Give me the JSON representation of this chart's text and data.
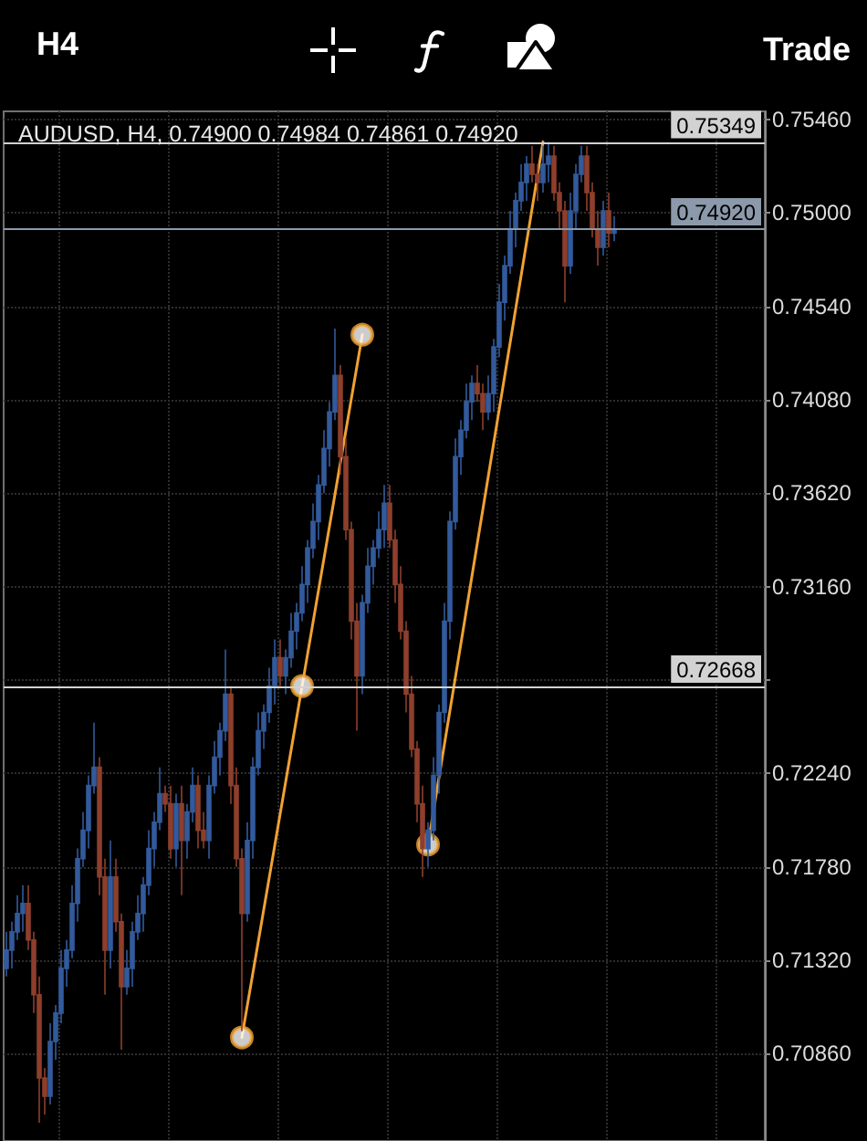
{
  "chart_data": {
    "type": "candlestick",
    "title": "AUDUSD, H4, 0.74900 0.74984 0.74861 0.74920",
    "annotations": [
      "H4",
      "Trade"
    ],
    "categories": [
      null,
      null,
      null,
      null,
      null,
      null,
      null,
      null,
      null,
      null,
      null,
      null,
      null,
      null,
      null,
      null,
      null,
      null,
      null,
      null,
      null,
      null,
      null,
      null,
      null,
      null,
      null,
      null,
      null,
      null,
      null,
      null,
      null,
      null,
      null,
      null,
      null,
      null,
      null,
      null,
      null,
      null,
      null,
      null,
      null,
      null,
      null,
      null,
      null,
      null,
      null,
      null,
      null,
      null,
      null,
      null,
      null,
      null,
      null,
      null,
      null,
      null,
      null,
      null,
      null,
      null,
      null,
      null,
      null,
      null,
      null,
      null,
      null,
      null,
      null,
      null,
      null,
      null,
      null,
      null,
      null,
      null,
      null,
      null,
      null,
      null,
      null,
      null,
      null,
      null,
      null,
      null,
      null,
      null,
      null,
      null,
      null,
      null,
      null,
      null,
      null,
      null,
      null,
      null,
      null,
      null,
      null,
      null,
      null,
      null,
      null,
      null,
      null,
      null,
      null,
      null,
      null,
      null,
      null,
      null,
      null,
      null,
      null,
      null,
      null,
      null,
      null,
      null,
      null,
      null,
      null,
      null,
      null,
      null,
      null,
      null,
      null,
      null,
      null
    ],
    "ylim": [
      0.7043,
      0.755
    ],
    "yticks": [
      {
        "value": 0.7086,
        "label": "0.70860"
      },
      {
        "value": 0.7132,
        "label": "0.71320"
      },
      {
        "value": 0.7178,
        "label": "0.71780"
      },
      {
        "value": 0.7224,
        "label": "0.72240"
      },
      {
        "value": 0.727,
        "label": null
      },
      {
        "value": 0.7316,
        "label": "0.73160"
      },
      {
        "value": 0.7362,
        "label": "0.73620"
      },
      {
        "value": 0.7408,
        "label": "0.74080"
      },
      {
        "value": 0.7454,
        "label": "0.74540"
      },
      {
        "value": 0.75,
        "label": "0.75000"
      },
      {
        "value": 0.7546,
        "label": "0.75460"
      }
    ],
    "grid": true,
    "tick_labels": "y",
    "ref_lines": [
      {
        "axis": "y",
        "value": 0.75349,
        "label": "0.75349",
        "color": "#d2d2d2"
      },
      {
        "axis": "y",
        "value": 0.7492,
        "label": "0.74920",
        "color": "#8c99aa"
      },
      {
        "axis": "y",
        "value": 0.72668,
        "label": "0.72668",
        "color": "#d2d2d2"
      }
    ],
    "series": [
      {
        "ohlc": [
          [
            0.7128,
            0.7146,
            0.7124,
            0.7137
          ],
          [
            0.7137,
            0.7151,
            0.7128,
            0.7146
          ],
          [
            0.7146,
            0.7164,
            0.7142,
            0.7155
          ],
          [
            0.7155,
            0.7169,
            0.7146,
            0.716
          ],
          [
            0.716,
            0.7169,
            0.7137,
            0.7142
          ],
          [
            0.7142,
            0.7146,
            0.7106,
            0.7115
          ],
          [
            0.7115,
            0.7124,
            0.7052,
            0.7074
          ],
          [
            0.7074,
            0.7079,
            0.7056,
            0.7065
          ],
          [
            0.7065,
            0.7101,
            0.7061,
            0.7092
          ],
          [
            0.7092,
            0.711,
            0.7083,
            0.7106
          ],
          [
            0.7106,
            0.7137,
            0.7101,
            0.7128
          ],
          [
            0.7128,
            0.7142,
            0.7119,
            0.7137
          ],
          [
            0.7137,
            0.7169,
            0.7133,
            0.716
          ],
          [
            0.716,
            0.7187,
            0.7151,
            0.7182
          ],
          [
            0.7182,
            0.7205,
            0.7178,
            0.7196
          ],
          [
            0.7196,
            0.7223,
            0.7187,
            0.7218
          ],
          [
            0.7218,
            0.7249,
            0.7214,
            0.7227
          ],
          [
            0.7227,
            0.7232,
            0.7164,
            0.7173
          ],
          [
            0.7173,
            0.7182,
            0.7115,
            0.7137
          ],
          [
            0.7137,
            0.7191,
            0.7128,
            0.7173
          ],
          [
            0.7173,
            0.7182,
            0.7146,
            0.7151
          ],
          [
            0.7151,
            0.7155,
            0.7088,
            0.7119
          ],
          [
            0.7119,
            0.7137,
            0.7115,
            0.7128
          ],
          [
            0.7128,
            0.7151,
            0.7119,
            0.7146
          ],
          [
            0.7146,
            0.7164,
            0.7142,
            0.7155
          ],
          [
            0.7155,
            0.7173,
            0.7146,
            0.7169
          ],
          [
            0.7169,
            0.7196,
            0.7164,
            0.7187
          ],
          [
            0.7187,
            0.7205,
            0.7178,
            0.72
          ],
          [
            0.72,
            0.7227,
            0.7196,
            0.7214
          ],
          [
            0.7214,
            0.7218,
            0.7205,
            0.7209
          ],
          [
            0.7209,
            0.7218,
            0.7182,
            0.7187
          ],
          [
            0.7187,
            0.7214,
            0.7178,
            0.7209
          ],
          [
            0.7209,
            0.7218,
            0.7164,
            0.7191
          ],
          [
            0.7191,
            0.7209,
            0.7182,
            0.7205
          ],
          [
            0.7205,
            0.7227,
            0.72,
            0.7218
          ],
          [
            0.7218,
            0.7223,
            0.7187,
            0.7196
          ],
          [
            0.7196,
            0.7205,
            0.7187,
            0.7191
          ],
          [
            0.7191,
            0.7223,
            0.7182,
            0.7218
          ],
          [
            0.7218,
            0.724,
            0.7214,
            0.7232
          ],
          [
            0.7232,
            0.7249,
            0.7223,
            0.7245
          ],
          [
            0.7245,
            0.7285,
            0.724,
            0.7263
          ],
          [
            0.7263,
            0.7267,
            0.7209,
            0.7218
          ],
          [
            0.7218,
            0.7227,
            0.7178,
            0.7182
          ],
          [
            0.7182,
            0.7187,
            0.7097,
            0.7155
          ],
          [
            0.7155,
            0.72,
            0.7151,
            0.7191
          ],
          [
            0.7191,
            0.7232,
            0.7182,
            0.7227
          ],
          [
            0.7227,
            0.7254,
            0.7223,
            0.7245
          ],
          [
            0.7245,
            0.7258,
            0.7236,
            0.7254
          ],
          [
            0.7254,
            0.7276,
            0.7249,
            0.7267
          ],
          [
            0.7267,
            0.729,
            0.7258,
            0.7281
          ],
          [
            0.7281,
            0.729,
            0.7267,
            0.7272
          ],
          [
            0.7272,
            0.7285,
            0.7263,
            0.7281
          ],
          [
            0.7281,
            0.7303,
            0.7276,
            0.7294
          ],
          [
            0.7294,
            0.7308,
            0.7285,
            0.7303
          ],
          [
            0.7303,
            0.7326,
            0.7299,
            0.7317
          ],
          [
            0.7317,
            0.7339,
            0.7308,
            0.7335
          ],
          [
            0.7335,
            0.7357,
            0.733,
            0.7348
          ],
          [
            0.7348,
            0.7371,
            0.7339,
            0.7366
          ],
          [
            0.7366,
            0.7393,
            0.7362,
            0.7384
          ],
          [
            0.7384,
            0.7407,
            0.7375,
            0.7402
          ],
          [
            0.7402,
            0.7443,
            0.7398,
            0.742
          ],
          [
            0.742,
            0.7425,
            0.7371,
            0.738
          ],
          [
            0.738,
            0.7389,
            0.7339,
            0.7344
          ],
          [
            0.7344,
            0.7348,
            0.729,
            0.7299
          ],
          [
            0.7299,
            0.7308,
            0.7245,
            0.7272
          ],
          [
            0.7272,
            0.7312,
            0.7263,
            0.7308
          ],
          [
            0.7308,
            0.7335,
            0.7303,
            0.7326
          ],
          [
            0.7326,
            0.7339,
            0.7317,
            0.7335
          ],
          [
            0.7335,
            0.7353,
            0.733,
            0.7344
          ],
          [
            0.7344,
            0.7366,
            0.7335,
            0.7357
          ],
          [
            0.7357,
            0.7366,
            0.7335,
            0.7339
          ],
          [
            0.7339,
            0.7344,
            0.7308,
            0.7317
          ],
          [
            0.7317,
            0.7326,
            0.729,
            0.7294
          ],
          [
            0.7294,
            0.7299,
            0.7254,
            0.7263
          ],
          [
            0.7263,
            0.7272,
            0.7232,
            0.7236
          ],
          [
            0.7236,
            0.724,
            0.72,
            0.7209
          ],
          [
            0.7209,
            0.7218,
            0.7173,
            0.7187
          ],
          [
            0.7187,
            0.72,
            0.7178,
            0.7196
          ],
          [
            0.7196,
            0.7232,
            0.7191,
            0.7223
          ],
          [
            0.7223,
            0.7258,
            0.7214,
            0.7254
          ],
          [
            0.7254,
            0.7308,
            0.7249,
            0.7299
          ],
          [
            0.7299,
            0.7353,
            0.729,
            0.7348
          ],
          [
            0.7348,
            0.7389,
            0.7344,
            0.738
          ],
          [
            0.738,
            0.7398,
            0.7371,
            0.7393
          ],
          [
            0.7393,
            0.7416,
            0.7389,
            0.7407
          ],
          [
            0.7407,
            0.742,
            0.7398,
            0.7416
          ],
          [
            0.7416,
            0.7425,
            0.7407,
            0.7411
          ],
          [
            0.7411,
            0.7416,
            0.7393,
            0.7402
          ],
          [
            0.7402,
            0.742,
            0.7398,
            0.7411
          ],
          [
            0.7411,
            0.7438,
            0.7402,
            0.7434
          ],
          [
            0.7434,
            0.7465,
            0.7429,
            0.7456
          ],
          [
            0.7456,
            0.7479,
            0.7447,
            0.7474
          ],
          [
            0.7474,
            0.7501,
            0.747,
            0.7492
          ],
          [
            0.7492,
            0.751,
            0.7483,
            0.7506
          ],
          [
            0.7506,
            0.7524,
            0.7501,
            0.7515
          ],
          [
            0.7515,
            0.7528,
            0.7506,
            0.7524
          ],
          [
            0.7524,
            0.7533,
            0.7515,
            0.7519
          ],
          [
            0.7519,
            0.7524,
            0.7506,
            0.7515
          ],
          [
            0.7515,
            0.7533,
            0.751,
            0.7524
          ],
          [
            0.7524,
            0.75349,
            0.7515,
            0.7528
          ],
          [
            0.7528,
            0.7533,
            0.7506,
            0.751
          ],
          [
            0.751,
            0.7515,
            0.7492,
            0.7501
          ],
          [
            0.7501,
            0.7506,
            0.7456,
            0.7474
          ],
          [
            0.7474,
            0.751,
            0.747,
            0.7501
          ],
          [
            0.7501,
            0.7524,
            0.7492,
            0.7519
          ],
          [
            0.7519,
            0.7533,
            0.7515,
            0.7528
          ],
          [
            0.7528,
            0.7533,
            0.7501,
            0.751
          ],
          [
            0.751,
            0.7515,
            0.7488,
            0.7492
          ],
          [
            0.7492,
            0.7501,
            0.7474,
            0.7483
          ],
          [
            0.7483,
            0.7506,
            0.7479,
            0.7501
          ],
          [
            0.7501,
            0.751,
            0.7483,
            0.749
          ],
          [
            0.749,
            0.74984,
            0.74861,
            0.7492
          ],
          null,
          null,
          null,
          null,
          null,
          null,
          null,
          null,
          null,
          null,
          null,
          null,
          null,
          null,
          null,
          null,
          null,
          null,
          null,
          null,
          null,
          null,
          null,
          null,
          null,
          null,
          null
        ],
        "colors": [
          "#325a9c",
          "#325a9c",
          "#325a9c",
          "#325a9c",
          "#8e3f2c",
          "#8e3f2c",
          "#8e3f2c",
          "#8e3f2c",
          "#325a9c",
          "#325a9c",
          "#325a9c",
          "#325a9c",
          "#325a9c",
          "#325a9c",
          "#325a9c",
          "#325a9c",
          "#325a9c",
          "#8e3f2c",
          "#8e3f2c",
          "#325a9c",
          "#8e3f2c",
          "#8e3f2c",
          "#325a9c",
          "#325a9c",
          "#325a9c",
          "#325a9c",
          "#325a9c",
          "#325a9c",
          "#325a9c",
          "#8e3f2c",
          "#8e3f2c",
          "#325a9c",
          "#8e3f2c",
          "#325a9c",
          "#325a9c",
          "#8e3f2c",
          "#8e3f2c",
          "#325a9c",
          "#325a9c",
          "#325a9c",
          "#325a9c",
          "#8e3f2c",
          "#8e3f2c",
          "#8e3f2c",
          "#325a9c",
          "#325a9c",
          "#325a9c",
          "#325a9c",
          "#325a9c",
          "#325a9c",
          "#8e3f2c",
          "#325a9c",
          "#325a9c",
          "#325a9c",
          "#325a9c",
          "#325a9c",
          "#325a9c",
          "#325a9c",
          "#325a9c",
          "#325a9c",
          "#325a9c",
          "#8e3f2c",
          "#8e3f2c",
          "#8e3f2c",
          "#8e3f2c",
          "#325a9c",
          "#325a9c",
          "#325a9c",
          "#325a9c",
          "#325a9c",
          "#8e3f2c",
          "#8e3f2c",
          "#8e3f2c",
          "#8e3f2c",
          "#8e3f2c",
          "#8e3f2c",
          "#8e3f2c",
          "#325a9c",
          "#325a9c",
          "#325a9c",
          "#325a9c",
          "#325a9c",
          "#325a9c",
          "#325a9c",
          "#325a9c",
          "#325a9c",
          "#8e3f2c",
          "#8e3f2c",
          "#325a9c",
          "#325a9c",
          "#325a9c",
          "#325a9c",
          "#325a9c",
          "#325a9c",
          "#325a9c",
          "#325a9c",
          "#8e3f2c",
          "#8e3f2c",
          "#325a9c",
          "#325a9c",
          "#8e3f2c",
          "#8e3f2c",
          "#8e3f2c",
          "#325a9c",
          "#325a9c",
          "#325a9c",
          "#8e3f2c",
          "#8e3f2c",
          "#8e3f2c",
          "#325a9c",
          "#8e3f2c",
          "#325a9c",
          null,
          null,
          null,
          null,
          null,
          null,
          null,
          null,
          null,
          null,
          null,
          null,
          null,
          null,
          null,
          null,
          null,
          null,
          null,
          null,
          null,
          null,
          null,
          null,
          null,
          null,
          null
        ]
      },
      {
        "type": "line",
        "color": "#f0a232",
        "values": [
          null,
          null,
          null,
          null,
          null,
          null,
          null,
          null,
          null,
          null,
          null,
          null,
          null,
          null,
          null,
          null,
          null,
          null,
          null,
          null,
          null,
          null,
          null,
          null,
          null,
          null,
          null,
          null,
          null,
          null,
          null,
          null,
          null,
          null,
          null,
          null,
          null,
          null,
          null,
          null,
          null,
          null,
          null,
          0.7094,
          null,
          null,
          null,
          null,
          null,
          null,
          null,
          null,
          null,
          null,
          0.7267,
          null,
          null,
          null,
          null,
          null,
          null,
          null,
          null,
          null,
          null,
          0.744,
          null,
          null,
          null,
          null,
          null,
          null,
          null,
          null,
          null,
          null,
          null,
          null,
          null,
          null,
          null,
          null,
          null,
          null,
          null,
          null,
          null,
          null,
          null,
          null,
          null,
          null,
          null,
          null,
          null,
          null,
          null,
          null,
          null,
          null,
          null,
          null,
          null,
          null,
          null,
          null,
          null,
          null,
          null,
          null,
          null,
          null,
          null,
          null,
          null,
          null,
          null,
          null,
          null,
          null,
          null,
          null,
          null,
          null,
          null,
          null,
          null,
          null,
          null,
          null,
          null,
          null,
          null,
          null,
          null,
          null,
          null,
          null,
          null
        ]
      },
      {
        "type": "line",
        "color": "#f0a232",
        "values": [
          null,
          null,
          null,
          null,
          null,
          null,
          null,
          null,
          null,
          null,
          null,
          null,
          null,
          null,
          null,
          null,
          null,
          null,
          null,
          null,
          null,
          null,
          null,
          null,
          null,
          null,
          null,
          null,
          null,
          null,
          null,
          null,
          null,
          null,
          null,
          null,
          null,
          null,
          null,
          null,
          null,
          null,
          null,
          null,
          null,
          null,
          null,
          null,
          null,
          null,
          null,
          null,
          null,
          null,
          null,
          null,
          null,
          null,
          null,
          null,
          null,
          null,
          null,
          null,
          null,
          null,
          null,
          null,
          null,
          null,
          null,
          null,
          null,
          null,
          null,
          null,
          null,
          0.7189,
          null,
          null,
          null,
          null,
          null,
          null,
          null,
          null,
          null,
          null,
          null,
          null,
          null,
          null,
          null,
          null,
          null,
          null,
          null,
          null,
          0.7535,
          null,
          null,
          null,
          null,
          null,
          null,
          null,
          null,
          null,
          null,
          null,
          null,
          null,
          null,
          null,
          null,
          null,
          null,
          null,
          null,
          null,
          null,
          null,
          null,
          null,
          null,
          null,
          null,
          null,
          null,
          null,
          null,
          null,
          null,
          null,
          null,
          null,
          null,
          null,
          null
        ]
      },
      {
        "type": "scatter",
        "color": "#f0a232",
        "marker": "circle",
        "values": [
          null,
          null,
          null,
          null,
          null,
          null,
          null,
          null,
          null,
          null,
          null,
          null,
          null,
          null,
          null,
          null,
          null,
          null,
          null,
          null,
          null,
          null,
          null,
          null,
          null,
          null,
          null,
          null,
          null,
          null,
          null,
          null,
          null,
          null,
          null,
          null,
          null,
          null,
          null,
          null,
          null,
          null,
          null,
          0.7094,
          null,
          null,
          null,
          null,
          null,
          null,
          null,
          null,
          null,
          null,
          0.7267,
          null,
          null,
          null,
          null,
          null,
          null,
          null,
          null,
          null,
          null,
          0.744,
          null,
          null,
          null,
          null,
          null,
          null,
          null,
          null,
          null,
          null,
          null,
          0.7189,
          null,
          null,
          null,
          null,
          null,
          null,
          null,
          null,
          null,
          null,
          null,
          null,
          null,
          null,
          null,
          null,
          null,
          null,
          null,
          null,
          null,
          null,
          null,
          null,
          null,
          null,
          null,
          null,
          null,
          null,
          null,
          null,
          null,
          null,
          null,
          null,
          null,
          null,
          null,
          null,
          null,
          null,
          null,
          null,
          null,
          null,
          null,
          null,
          null,
          null,
          null,
          null,
          null,
          null,
          null,
          null,
          null,
          null,
          null,
          null,
          null
        ]
      }
    ]
  }
}
